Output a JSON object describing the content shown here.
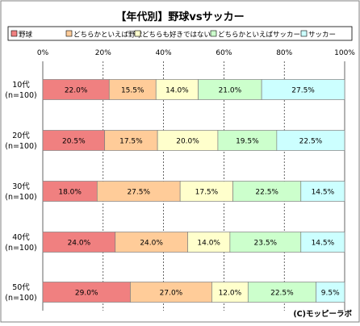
{
  "chart_data": {
    "type": "bar",
    "orientation": "horizontal",
    "stacked": true,
    "percent_stacked": true,
    "title": "【年代別】野球vsサッカー",
    "categories": [
      "10代\n(n=100)",
      "20代\n(n=100)",
      "30代\n(n=100)",
      "40代\n(n=100)",
      "50代\n(n=100)"
    ],
    "series": [
      {
        "name": "野球",
        "color": "#f08080",
        "values": [
          22.0,
          20.5,
          18.0,
          24.0,
          29.0
        ]
      },
      {
        "name": "どちらかといえば野球",
        "color": "#ffcc99",
        "values": [
          15.5,
          17.5,
          27.5,
          24.0,
          27.0
        ]
      },
      {
        "name": "どちらも好きではない",
        "color": "#ffffcc",
        "values": [
          14.0,
          20.0,
          17.5,
          14.0,
          12.0
        ]
      },
      {
        "name": "どちらかといえばサッカー",
        "color": "#ccffcc",
        "values": [
          21.0,
          19.5,
          22.5,
          23.5,
          22.5
        ]
      },
      {
        "name": "サッカー",
        "color": "#ccffff",
        "values": [
          27.5,
          22.5,
          14.5,
          14.5,
          9.5
        ]
      }
    ],
    "xlim": [
      0,
      100
    ],
    "x_ticks": [
      "0%",
      "20%",
      "40%",
      "60%",
      "80%",
      "100%"
    ],
    "grid": true,
    "legend_position": "top",
    "credit": "(C)モッピーラボ"
  }
}
